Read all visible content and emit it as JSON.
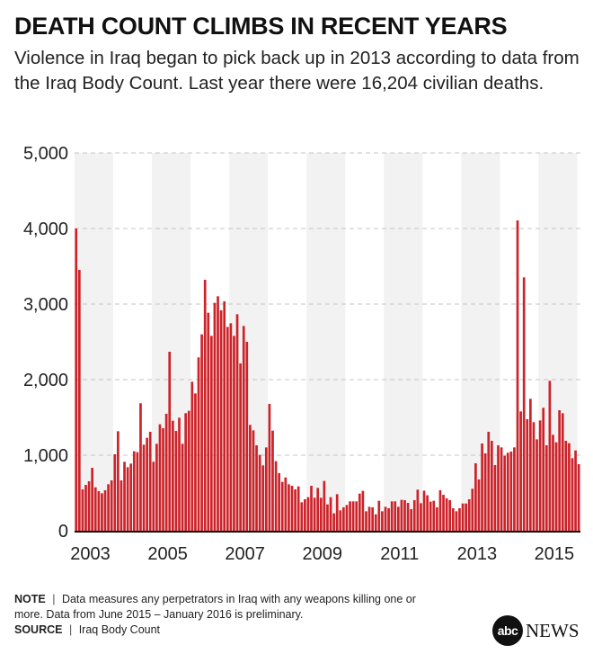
{
  "title": "DEATH COUNT CLIMBS IN RECENT YEARS",
  "subtitle": "Violence in Iraq began to pick back up in 2013 according to data from the Iraq Body Count. Last year there were 16,204 civilian deaths.",
  "footer": {
    "note_label": "NOTE",
    "note_text": "Data measures any perpetrators in Iraq with any weapons killing one or more. Data from June 2015 – January 2016 is preliminary.",
    "source_label": "SOURCE",
    "source_text": "Iraq Body Count",
    "separator": "|"
  },
  "logo": {
    "mark": "abc",
    "text": "NEWS"
  },
  "chart_data": {
    "type": "bar",
    "title": "",
    "xlabel": "",
    "ylabel": "",
    "ylim": [
      0,
      5000
    ],
    "yticks": [
      "0",
      "1,000",
      "2,000",
      "3,000",
      "4,000",
      "5,000"
    ],
    "ytick_values": [
      0,
      1000,
      2000,
      3000,
      4000,
      5000
    ],
    "xticks": [
      "2003",
      "2005",
      "2007",
      "2009",
      "2011",
      "2013",
      "2015"
    ],
    "grid": "horizontal dashed",
    "shaded_years": [
      2003,
      2005,
      2007,
      2009,
      2011,
      2013,
      2015
    ],
    "bar_color": "#cc2229",
    "band_color": "#f2f2f2",
    "interval": "monthly",
    "values_by_year": [
      {
        "year": 2003,
        "monthly": [
          4000,
          3452,
          548,
          607,
          655,
          833,
          575,
          524,
          496,
          536,
          615,
          667
        ]
      },
      {
        "year": 2004,
        "monthly": [
          1012,
          1317,
          667,
          913,
          841,
          889,
          1052,
          1040,
          1687,
          1139,
          1230,
          1310
        ]
      },
      {
        "year": 2005,
        "monthly": [
          913,
          1151,
          1409,
          1357,
          1548,
          2369,
          1456,
          1321,
          1496,
          1151,
          1556,
          1587
        ]
      },
      {
        "year": 2006,
        "monthly": [
          1972,
          1817,
          2294,
          2599,
          3321,
          2885,
          2579,
          3016,
          3103,
          2917,
          3036,
          2698
        ]
      },
      {
        "year": 2007,
        "monthly": [
          2746,
          2579,
          2865,
          2214,
          2710,
          2500,
          1401,
          1329,
          1131,
          1004,
          865,
          1103
        ]
      },
      {
        "year": 2008,
        "monthly": [
          1679,
          1325,
          921,
          762,
          647,
          706,
          615,
          595,
          548,
          587,
          377,
          417
        ]
      },
      {
        "year": 2009,
        "monthly": [
          444,
          595,
          437,
          567,
          437,
          659,
          349,
          444,
          230,
          484,
          270,
          310
        ]
      },
      {
        "year": 2010,
        "monthly": [
          341,
          389,
          389,
          389,
          492,
          528,
          258,
          317,
          310,
          218,
          397,
          258
        ]
      },
      {
        "year": 2011,
        "monthly": [
          317,
          298,
          389,
          389,
          317,
          409,
          405,
          369,
          286,
          405,
          544,
          365
        ]
      },
      {
        "year": 2012,
        "monthly": [
          530,
          470,
          385,
          397,
          310,
          536,
          476,
          429,
          405,
          298,
          258,
          298
        ]
      },
      {
        "year": 2013,
        "monthly": [
          361,
          361,
          417,
          556,
          893,
          679,
          1155,
          1024,
          1310,
          1190,
          869,
          1131
        ]
      },
      {
        "year": 2014,
        "monthly": [
          1103,
          992,
          1032,
          1048,
          1103,
          4107,
          1579,
          3353,
          1476,
          1746,
          1437,
          1210
        ]
      },
      {
        "year": 2015,
        "monthly": [
          1460,
          1627,
          1131,
          1984,
          1270,
          1171,
          1595,
          1555,
          1190,
          1159,
          960,
          1063
        ]
      },
      {
        "year": 2016,
        "monthly": [
          881
        ]
      }
    ]
  }
}
